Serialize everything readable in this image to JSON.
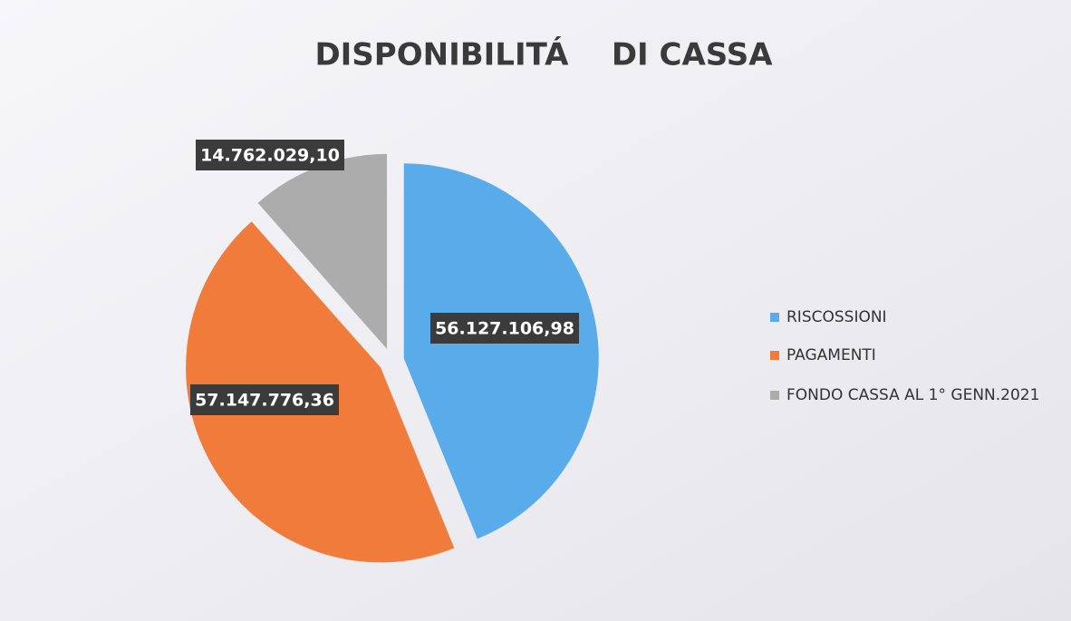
{
  "chart_data": {
    "type": "pie",
    "title": "DISPONIBILITÁ    DI CASSA",
    "categories": [
      "RISCOSSIONI",
      "PAGAMENTI",
      "FONDO CASSA AL 1° GENN.2021"
    ],
    "values": [
      56127106.98,
      57147776.36,
      14762029.1
    ],
    "value_labels": [
      "56.127.106,98",
      "57.147.776,36",
      "14.762.029,10"
    ],
    "colors": [
      "#5aabea",
      "#f07b3b",
      "#acacac"
    ],
    "legend": "right"
  }
}
